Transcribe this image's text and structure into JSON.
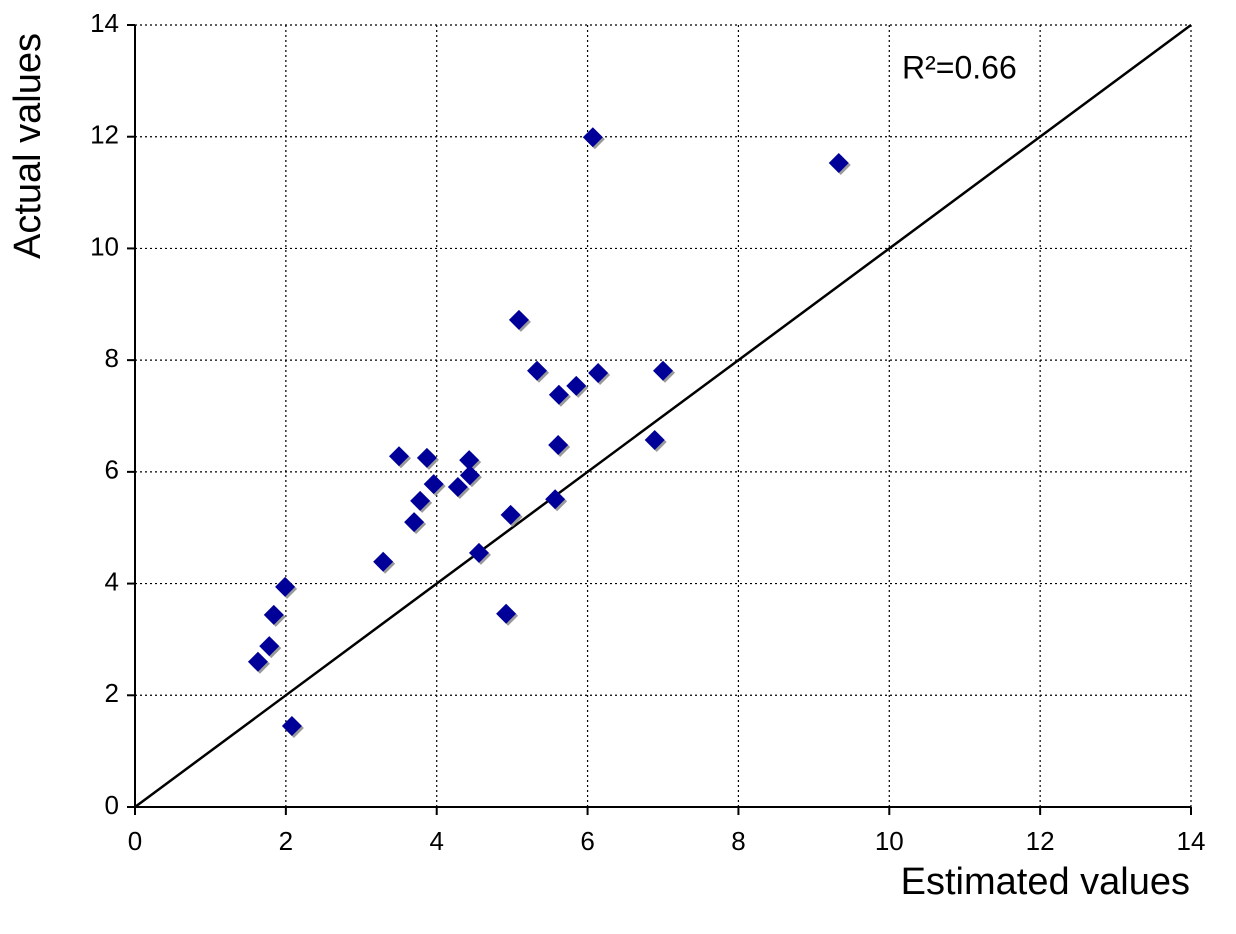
{
  "chart_data": {
    "type": "scatter",
    "x_label": "Estimated values",
    "y_label": "Actual values",
    "annotation": "R²=0.66",
    "color": "#000099",
    "grid": true,
    "reference_line": "y=x",
    "xlim": [
      0,
      14
    ],
    "ylim": [
      0,
      14
    ],
    "xticks": [
      0,
      2,
      4,
      6,
      8,
      10,
      12,
      14
    ],
    "yticks": [
      0,
      2,
      4,
      6,
      8,
      10,
      12,
      14
    ],
    "x": [
      1.63,
      1.78,
      1.84,
      1.99,
      2.08,
      3.29,
      3.5,
      3.7,
      3.78,
      3.87,
      3.96,
      4.28,
      4.43,
      4.44,
      4.56,
      4.92,
      4.98,
      5.09,
      5.33,
      5.57,
      5.61,
      5.62,
      5.85,
      6.07,
      6.14,
      6.89,
      7.0,
      9.33
    ],
    "values": [
      2.6,
      2.88,
      3.44,
      3.94,
      1.45,
      4.39,
      6.28,
      5.1,
      5.48,
      6.25,
      5.78,
      5.73,
      6.21,
      5.94,
      4.55,
      3.46,
      5.23,
      8.72,
      7.81,
      5.51,
      6.48,
      7.38,
      7.54,
      11.99,
      7.77,
      6.57,
      7.81,
      11.53
    ]
  }
}
